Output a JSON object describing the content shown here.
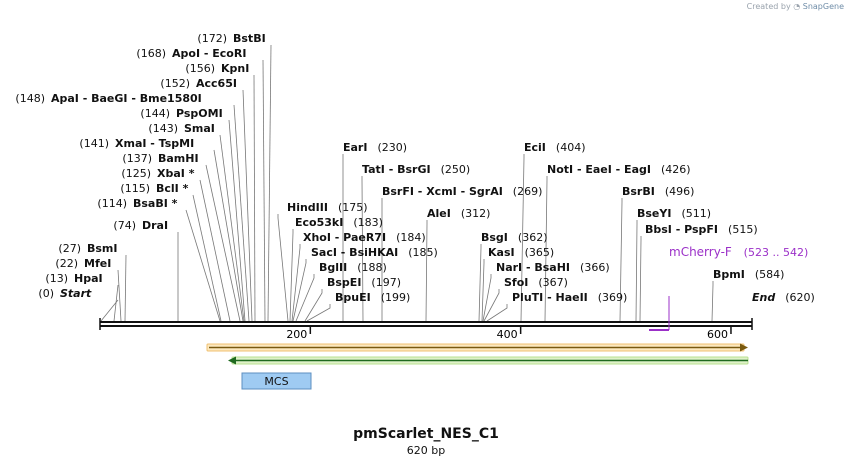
{
  "credit": {
    "prefix": "Created by",
    "brand": "SnapGene"
  },
  "title": "pmScarlet_NES_C1",
  "subtitle": "620 bp",
  "colors": {
    "backbone": "#111111",
    "primer": "#9b30c8",
    "orange": "#f0a020",
    "green": "#1f7a1f",
    "mcs": "#9fcbf2"
  },
  "ruler": {
    "ticks": [
      {
        "label": "200"
      },
      {
        "label": "400"
      },
      {
        "label": "600"
      }
    ]
  },
  "left_labels": [
    {
      "pos": "(0)",
      "name": "Start",
      "style": "italic"
    },
    {
      "pos": "(13)",
      "name": "HpaI"
    },
    {
      "pos": "(22)",
      "name": "MfeI"
    },
    {
      "pos": "(27)",
      "name": "BsmI"
    },
    {
      "pos": "(74)",
      "name": "DraI"
    },
    {
      "pos": "(114)",
      "name": "BsaBI *"
    },
    {
      "pos": "(115)",
      "name": "BclI *"
    },
    {
      "pos": "(125)",
      "name": "XbaI *"
    },
    {
      "pos": "(137)",
      "name": "BamHI"
    },
    {
      "pos": "(141)",
      "name": "XmaI  -  TspMI"
    },
    {
      "pos": "(143)",
      "name": "SmaI"
    },
    {
      "pos": "(144)",
      "name": "PspOMI"
    },
    {
      "pos": "(148)",
      "name": "ApaI  -  BaeGI  -  Bme1580I"
    },
    {
      "pos": "(152)",
      "name": "Acc65I"
    },
    {
      "pos": "(156)",
      "name": "KpnI"
    },
    {
      "pos": "(168)",
      "name": "ApoI  -  EcoRI"
    },
    {
      "pos": "(172)",
      "name": "BstBI"
    }
  ],
  "right_labels": [
    {
      "name": "HindIII",
      "pos": "(175)"
    },
    {
      "name": "Eco53kI",
      "pos": "(183)"
    },
    {
      "name": "XhoI  -  PaeR7I",
      "pos": "(184)"
    },
    {
      "name": "SacI  -  BsiHKAI",
      "pos": "(185)"
    },
    {
      "name": "BglII",
      "pos": "(188)"
    },
    {
      "name": "BspEI",
      "pos": "(197)"
    },
    {
      "name": "BpuEI",
      "pos": "(199)"
    },
    {
      "name": "EarI",
      "pos": "(230)"
    },
    {
      "name": "TatI  -  BsrGI",
      "pos": "(250)"
    },
    {
      "name": "BsrFI  -  XcmI  -  SgrAI",
      "pos": "(269)"
    },
    {
      "name": "AleI",
      "pos": "(312)"
    },
    {
      "name": "BsgI",
      "pos": "(362)"
    },
    {
      "name": "KasI",
      "pos": "(365)"
    },
    {
      "name": "NarI  -  BsaHI",
      "pos": "(366)"
    },
    {
      "name": "SfoI",
      "pos": "(367)"
    },
    {
      "name": "PluTI  -  HaeII",
      "pos": "(369)"
    },
    {
      "name": "EciI",
      "pos": "(404)"
    },
    {
      "name": "NotI  -  EaeI  -  EagI",
      "pos": "(426)"
    },
    {
      "name": "BsrBI",
      "pos": "(496)"
    },
    {
      "name": "BseYI",
      "pos": "(511)"
    },
    {
      "name": "BbsI  -  PspFI",
      "pos": "(515)"
    },
    {
      "name": "BpmI",
      "pos": "(584)"
    },
    {
      "name": "End",
      "pos": "(620)",
      "style": "italic"
    }
  ],
  "primer": {
    "name": "mCherry-F",
    "range": "(523 .. 542)"
  },
  "features": {
    "mcs": "MCS"
  }
}
